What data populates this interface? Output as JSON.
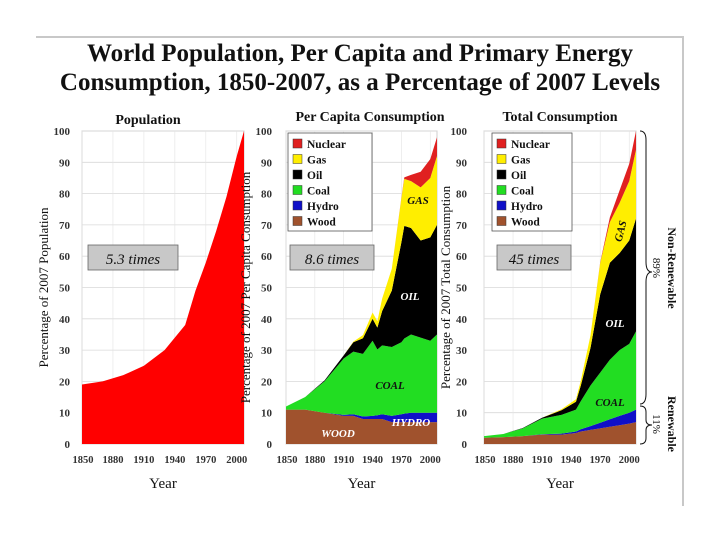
{
  "title_line1": "World Population, Per Capita and Primary Energy",
  "title_line2": "Consumption, 1850-2007, as a Percentage of 2007 Levels",
  "chart_data": [
    {
      "type": "area",
      "title": "Population",
      "ylabel": "Percentage of 2007 Population",
      "xlabel": "Year",
      "ylim": [
        0,
        100
      ],
      "yticks": [
        "0",
        "10",
        "20",
        "30",
        "40",
        "50",
        "60",
        "70",
        "80",
        "90",
        "100"
      ],
      "xticks": [
        "1850",
        "1880",
        "1910",
        "1940",
        "1970",
        "2000"
      ],
      "annotation": "5.3 times",
      "x": [
        1850,
        1870,
        1890,
        1910,
        1930,
        1950,
        1960,
        1970,
        1980,
        1990,
        2000,
        2007
      ],
      "series": [
        {
          "name": "Population",
          "color": "#ff0000",
          "values": [
            19,
            20,
            22,
            25,
            30,
            38,
            49,
            58,
            68,
            79,
            92,
            100
          ]
        }
      ]
    },
    {
      "type": "area",
      "title": "Per Capita Consumption",
      "ylabel": "Percentage of 2007 Per Capita Consumption",
      "xlabel": "Year",
      "ylim": [
        0,
        100
      ],
      "yticks": [
        "0",
        "10",
        "20",
        "30",
        "40",
        "50",
        "60",
        "70",
        "80",
        "90",
        "100"
      ],
      "xticks": [
        "1850",
        "1880",
        "1910",
        "1940",
        "1970",
        "2000"
      ],
      "annotation": "8.6 times",
      "legend": [
        "Nuclear",
        "Gas",
        "Oil",
        "Coal",
        "Hydro",
        "Wood"
      ],
      "area_labels": {
        "gas": "GAS",
        "oil": "OIL",
        "coal": "COAL",
        "hydro": "HYDRO",
        "wood": "WOOD"
      },
      "x": [
        1850,
        1870,
        1890,
        1910,
        1920,
        1930,
        1940,
        1945,
        1950,
        1960,
        1970,
        1973,
        1980,
        1990,
        2000,
        2007
      ],
      "series": [
        {
          "name": "Wood",
          "color": "#a0522d",
          "values": [
            11,
            11,
            10,
            9,
            9,
            8,
            8,
            8,
            8,
            7,
            7,
            7,
            7,
            7,
            7,
            7
          ]
        },
        {
          "name": "Hydro",
          "color": "#1010c8",
          "values": [
            0,
            0,
            0,
            0.3,
            0.5,
            0.8,
            1,
            1.2,
            1.5,
            2,
            2.5,
            2.7,
            3,
            3,
            3,
            3
          ]
        },
        {
          "name": "Coal",
          "color": "#22dd22",
          "values": [
            1,
            4,
            10,
            18,
            20,
            20,
            24,
            21,
            22,
            22,
            23,
            24,
            25,
            24,
            23,
            25
          ]
        },
        {
          "name": "Oil",
          "color": "#000000",
          "values": [
            0,
            0,
            0.3,
            1,
            3,
            5,
            7,
            7,
            11,
            18,
            32,
            36,
            34,
            31,
            33,
            35
          ]
        },
        {
          "name": "Gas",
          "color": "#ffee00",
          "values": [
            0,
            0,
            0,
            0,
            0.2,
            1,
            2,
            2,
            4,
            7,
            14,
            15,
            15,
            17,
            19,
            22
          ]
        },
        {
          "name": "Nuclear",
          "color": "#e02020",
          "values": [
            0,
            0,
            0,
            0,
            0,
            0,
            0,
            0,
            0,
            0,
            0.2,
            0.5,
            2,
            5,
            6,
            6
          ]
        }
      ]
    },
    {
      "type": "area",
      "title": "Total Consumption",
      "ylabel": "Percentage of 2007 Total Consumption",
      "xlabel": "Year",
      "ylim": [
        0,
        100
      ],
      "yticks": [
        "0",
        "10",
        "20",
        "30",
        "40",
        "50",
        "60",
        "70",
        "80",
        "90",
        "100"
      ],
      "xticks": [
        "1850",
        "1880",
        "1910",
        "1940",
        "1970",
        "2000"
      ],
      "annotation": "45 times",
      "legend": [
        "Nuclear",
        "Gas",
        "Oil",
        "Coal",
        "Hydro",
        "Wood"
      ],
      "area_labels": {
        "gas": "GAS",
        "oil": "OIL",
        "coal": "COAL"
      },
      "brackets": {
        "nonrenewable_label": "Non-Renewable",
        "nonrenewable_pct": "89%",
        "renewable_label": "Renewable",
        "renewable_pct": "11%"
      },
      "x": [
        1850,
        1870,
        1890,
        1910,
        1930,
        1945,
        1950,
        1960,
        1970,
        1980,
        1990,
        2000,
        2007
      ],
      "series": [
        {
          "name": "Wood",
          "color": "#a0522d",
          "values": [
            2,
            2.2,
            2.5,
            3,
            3,
            3.5,
            4,
            4.5,
            5,
            5.5,
            6,
            6.5,
            7
          ]
        },
        {
          "name": "Hydro",
          "color": "#1010c8",
          "values": [
            0,
            0,
            0,
            0.1,
            0.3,
            0.5,
            0.7,
            1.2,
            1.8,
            2.4,
            3,
            3.5,
            4
          ]
        },
        {
          "name": "Coal",
          "color": "#22dd22",
          "values": [
            0.5,
            1,
            2.5,
            5,
            6,
            7,
            9,
            13,
            16,
            19,
            21,
            22,
            25
          ]
        },
        {
          "name": "Oil",
          "color": "#000000",
          "values": [
            0,
            0,
            0.1,
            0.3,
            1.5,
            2.5,
            5,
            12,
            25,
            31,
            31,
            33,
            36
          ]
        },
        {
          "name": "Gas",
          "color": "#ffee00",
          "values": [
            0,
            0,
            0,
            0,
            0.3,
            0.8,
            1.5,
            4,
            10,
            13,
            16,
            19,
            22
          ]
        },
        {
          "name": "Nuclear",
          "color": "#e02020",
          "values": [
            0,
            0,
            0,
            0,
            0,
            0,
            0,
            0,
            0.2,
            1.5,
            4,
            5.5,
            6
          ]
        }
      ]
    }
  ]
}
